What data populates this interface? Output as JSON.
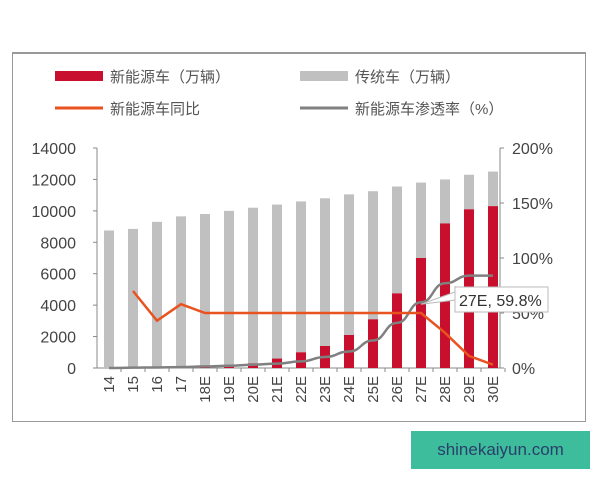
{
  "chart_data": {
    "type": "bar",
    "categories": [
      "14",
      "15",
      "16",
      "17",
      "18E",
      "19E",
      "20E",
      "21E",
      "22E",
      "23E",
      "24E",
      "25E",
      "26E",
      "27E",
      "28E",
      "29E",
      "30E"
    ],
    "series": [
      {
        "name": "新能源车（万辆）",
        "type": "bar",
        "stacked": true,
        "axis": "left",
        "color": "#c8102e",
        "values": [
          0,
          30,
          50,
          80,
          150,
          200,
          300,
          600,
          1000,
          1400,
          2100,
          3100,
          4750,
          7000,
          9200,
          10100,
          10300
        ]
      },
      {
        "name": "传统车（万辆）",
        "type": "bar",
        "stacked": true,
        "axis": "left",
        "color": "#c0c0c0",
        "values": [
          8750,
          8820,
          9250,
          9570,
          9650,
          9800,
          9900,
          9800,
          9600,
          9400,
          8950,
          8150,
          6800,
          4800,
          2800,
          2200,
          2200
        ]
      },
      {
        "name": "新能源车同比",
        "type": "line",
        "axis": "right",
        "color": "#e8531f",
        "values": [
          null,
          70,
          43,
          58,
          50,
          50,
          50,
          50,
          50,
          50,
          50,
          50,
          50,
          50,
          32,
          11,
          3
        ]
      },
      {
        "name": "新能源车渗透率（%）",
        "type": "line",
        "axis": "right",
        "color": "#808080",
        "values": [
          0,
          0.3,
          0.5,
          0.8,
          1.5,
          2,
          3,
          4,
          6,
          10,
          15,
          25,
          41,
          59.8,
          77,
          84,
          84
        ]
      }
    ],
    "yleft": {
      "ticks": [
        "0",
        "2000",
        "4000",
        "6000",
        "8000",
        "10000",
        "12000",
        "14000"
      ],
      "ylim": [
        0,
        14000
      ]
    },
    "yright": {
      "ticks": [
        "0%",
        "50%",
        "100%",
        "150%",
        "200%"
      ],
      "ylim": [
        0,
        200
      ]
    },
    "annotation": "27E, 59.8%",
    "legend_position": "top",
    "grid": false
  },
  "watermark": "shinekaiyun.com"
}
